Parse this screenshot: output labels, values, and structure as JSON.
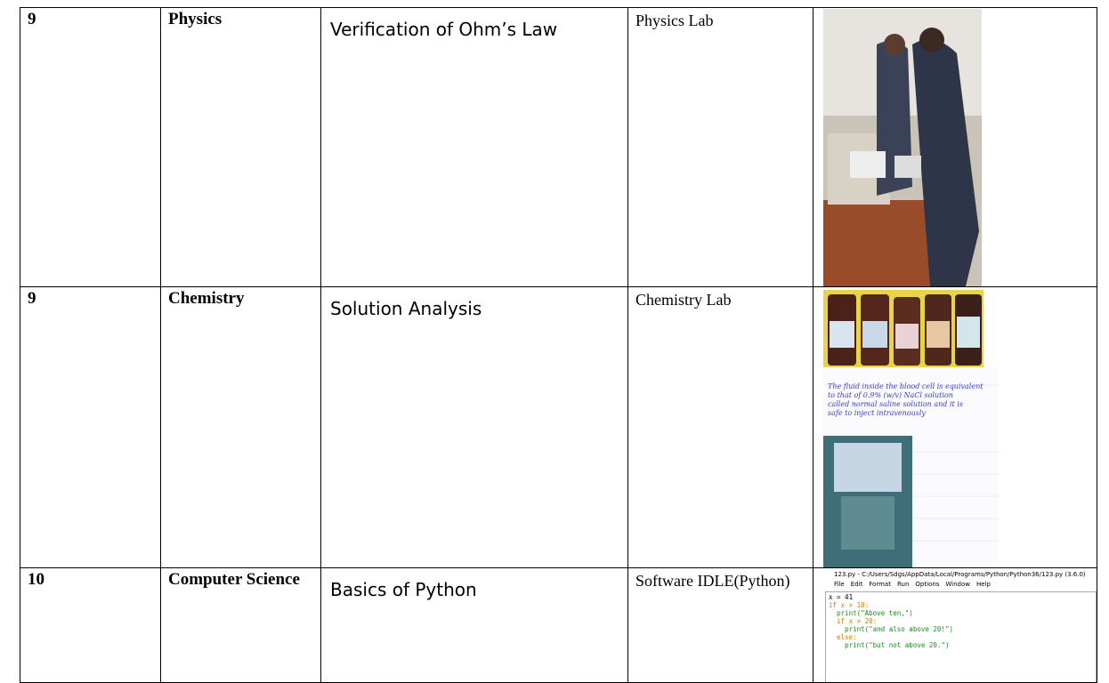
{
  "table": {
    "rows": [
      [
        "9",
        "Physics",
        "Verification of Ohm’s Law",
        "Physics Lab"
      ],
      [
        "9",
        "Chemistry",
        "Solution Analysis",
        "Chemistry Lab"
      ],
      [
        "10",
        "Computer Science",
        "Basics of Python",
        "Software IDLE(Python)"
      ]
    ]
  },
  "note": {
    "lines": [
      "The fluid inside the blood cell is equivalent",
      "to that of 0.9% (w/v) NaCl solution",
      "called normal saline solution and it is",
      "safe to inject intravenously"
    ]
  },
  "idle": {
    "title": "123.py - C:/Users/Sdgs/AppData/Local/Programs/Python/Python36/123.py (3.6.0)",
    "menu": [
      "File",
      "Edit",
      "Format",
      "Run",
      "Options",
      "Window",
      "Help"
    ],
    "code": [
      "x = 41",
      "if x > 10:",
      "  print(\"Above ten,\")",
      "  if x > 20:",
      "    print(\"and also above 20!\")",
      "  else:",
      "    print(\"but not above 20.\")"
    ]
  }
}
